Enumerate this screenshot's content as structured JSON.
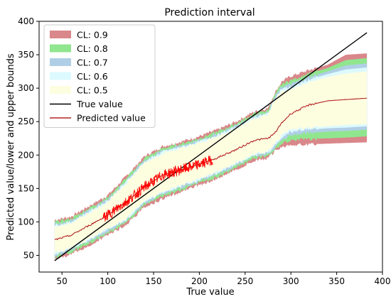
{
  "chart_data": {
    "type": "area",
    "title": "Prediction interval",
    "xlabel": "True value",
    "ylabel": "Predicted value/lower and upper bounds",
    "xlim": [
      25,
      400
    ],
    "ylim": [
      25,
      400
    ],
    "xticks": [
      50,
      100,
      150,
      200,
      250,
      300,
      350,
      400
    ],
    "yticks": [
      50,
      100,
      150,
      200,
      250,
      300,
      350,
      400
    ],
    "grid": false,
    "legend_position": "top-left",
    "x": [
      42,
      60,
      80,
      100,
      120,
      140,
      160,
      180,
      200,
      220,
      240,
      260,
      275,
      282,
      290,
      300,
      320,
      340,
      360,
      383
    ],
    "predicted": [
      73,
      80,
      95,
      110,
      130,
      152,
      170,
      178,
      186,
      196,
      208,
      222,
      225,
      232,
      248,
      262,
      275,
      281,
      283,
      285
    ],
    "bands": [
      {
        "name": "CL: 0.9",
        "color": "#d9878a",
        "lower": [
          43,
          52,
          65,
          80,
          95,
          122,
          135,
          145,
          155,
          165,
          178,
          192,
          195,
          205,
          213,
          215,
          216,
          217,
          218,
          219
        ],
        "upper": [
          103,
          108,
          124,
          140,
          168,
          198,
          213,
          220,
          228,
          238,
          250,
          265,
          270,
          292,
          310,
          318,
          327,
          335,
          350,
          352
        ]
      },
      {
        "name": "CL: 0.8",
        "color": "#90e68e",
        "lower": [
          46,
          55,
          68,
          83,
          98,
          125,
          138,
          148,
          158,
          168,
          181,
          195,
          198,
          208,
          217,
          222,
          224,
          225,
          226,
          228
        ],
        "upper": [
          100,
          105,
          121,
          137,
          165,
          195,
          210,
          217,
          225,
          235,
          247,
          262,
          267,
          289,
          306,
          312,
          322,
          330,
          342,
          345
        ]
      },
      {
        "name": "CL: 0.7",
        "color": "#b0cfe6",
        "lower": [
          49,
          58,
          71,
          86,
          101,
          128,
          141,
          151,
          161,
          171,
          184,
          198,
          201,
          211,
          222,
          230,
          233,
          235,
          236,
          238
        ],
        "upper": [
          97,
          102,
          118,
          134,
          162,
          192,
          207,
          214,
          222,
          232,
          244,
          259,
          264,
          286,
          302,
          306,
          317,
          325,
          334,
          337
        ]
      },
      {
        "name": "CL: 0.6",
        "color": "#dcfaff",
        "lower": [
          51,
          60,
          73,
          88,
          103,
          130,
          143,
          153,
          163,
          173,
          186,
          200,
          203,
          213,
          226,
          235,
          238,
          240,
          241,
          243
        ],
        "upper": [
          95,
          100,
          116,
          132,
          160,
          190,
          205,
          212,
          220,
          230,
          242,
          257,
          262,
          284,
          299,
          302,
          313,
          321,
          328,
          331
        ]
      },
      {
        "name": "CL: 0.5",
        "color": "#fdfde0",
        "lower": [
          53,
          62,
          75,
          90,
          105,
          132,
          145,
          155,
          165,
          175,
          188,
          202,
          205,
          215,
          229,
          238,
          241,
          243,
          245,
          246
        ],
        "upper": [
          93,
          98,
          114,
          130,
          158,
          188,
          203,
          210,
          218,
          228,
          240,
          255,
          260,
          282,
          296,
          298,
          309,
          317,
          322,
          325
        ]
      }
    ],
    "series": [
      {
        "name": "True value",
        "color": "#000000",
        "x": [
          42,
          383
        ],
        "y": [
          42,
          383
        ]
      },
      {
        "name": "Predicted value",
        "color": "#b22222"
      }
    ],
    "noisy_region": {
      "color": "#ff0000",
      "x_range": [
        95,
        215
      ]
    }
  }
}
